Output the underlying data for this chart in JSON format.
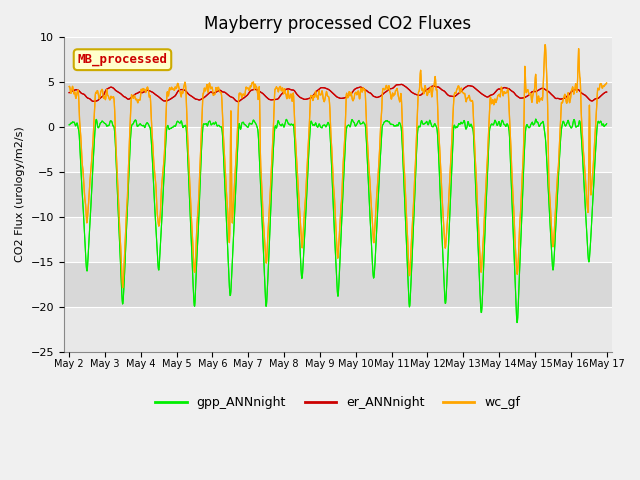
{
  "title": "Mayberry processed CO2 Fluxes",
  "ylabel": "CO2 Flux (urology/m2/s)",
  "ylim": [
    -25,
    10
  ],
  "yticks": [
    -25,
    -20,
    -15,
    -10,
    -5,
    0,
    5,
    10
  ],
  "start_day": 2,
  "end_day": 17,
  "n_points": 1440,
  "gpp_color": "#00ee00",
  "er_color": "#cc0000",
  "wc_color": "#ffa500",
  "bg_color": "#f0f0f0",
  "plot_bg_color": "#e0e0e0",
  "annotation_text": "MB_processed",
  "annotation_facecolor": "#ffffcc",
  "annotation_edgecolor": "#ccaa00",
  "annotation_textcolor": "#cc0000",
  "legend_labels": [
    "gpp_ANNnight",
    "er_ANNnight",
    "wc_gf"
  ],
  "xticklabels": [
    "May 2",
    "May 3",
    "May 4",
    "May 5",
    "May 6",
    "May 7",
    "May 8",
    "May 9",
    "May 10",
    "May 11",
    "May 12",
    "May 13",
    "May 14",
    "May 15",
    "May 16",
    "May 17"
  ],
  "grid_colors": [
    "#d8d8d8",
    "#cacaca"
  ],
  "figsize": [
    6.4,
    4.8
  ],
  "dpi": 100
}
